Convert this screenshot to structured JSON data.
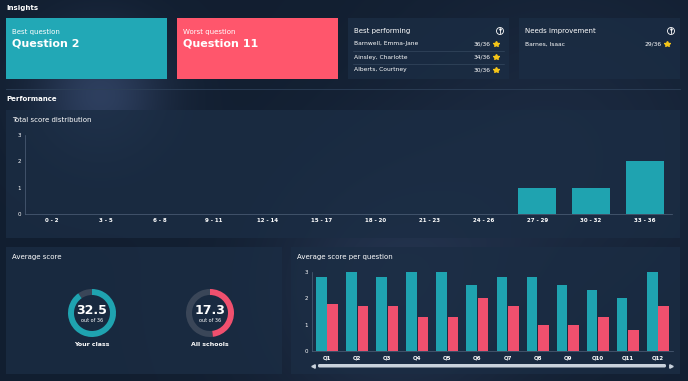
{
  "header": {
    "title": "Insights"
  },
  "insights": {
    "best_question": {
      "label": "Best question",
      "value": "Question 2",
      "color": "#22a8b6"
    },
    "worst_question": {
      "label": "Worst question",
      "value": "Question 11",
      "color": "#ff566c"
    },
    "best_performing": {
      "title": "Best performing",
      "rows": [
        {
          "name": "Barnwell, Emma-Jane",
          "score": "36/36"
        },
        {
          "name": "Ainsley, Charlotte",
          "score": "34/36"
        },
        {
          "name": "Alberts, Courtney",
          "score": "30/36"
        }
      ]
    },
    "needs_improvement": {
      "title": "Needs improvement",
      "rows": [
        {
          "name": "Barnes, Isaac",
          "score": "29/36"
        }
      ]
    }
  },
  "section": {
    "title": "Performance"
  },
  "chart_data": [
    {
      "type": "bar",
      "title": "Total score distribution",
      "categories": [
        "0 - 2",
        "3 - 5",
        "6 - 8",
        "9 - 11",
        "12 - 14",
        "15 - 17",
        "18 - 20",
        "21 - 23",
        "24 - 26",
        "27 - 29",
        "30 - 32",
        "33 - 36"
      ],
      "values": [
        0,
        0,
        0,
        0,
        0,
        0,
        0,
        0,
        0,
        1,
        1,
        2
      ],
      "color": "#1fa3b0",
      "ylim": [
        0,
        3
      ],
      "yticks": [
        0,
        1,
        2,
        3
      ]
    },
    {
      "type": "gauge",
      "title": "Average score",
      "items": [
        {
          "value": 32.5,
          "max": 36,
          "max_label": "out of 36",
          "label": "Your class",
          "color": "#1fa3b0"
        },
        {
          "value": 17.3,
          "max": 36,
          "max_label": "out of 36",
          "label": "All schools",
          "color": "#f0506e"
        }
      ]
    },
    {
      "type": "bar",
      "title": "Average score per question",
      "categories": [
        "Q1",
        "Q2",
        "Q3",
        "Q4",
        "Q5",
        "Q6",
        "Q7",
        "Q8",
        "Q9",
        "Q10",
        "Q11",
        "Q12"
      ],
      "series": [
        {
          "color": "#1fa3b0",
          "values": [
            2.8,
            3.0,
            2.8,
            3.0,
            3.0,
            2.5,
            2.8,
            2.8,
            2.5,
            2.3,
            2.0,
            3.0
          ]
        },
        {
          "color": "#f0506e",
          "values": [
            1.8,
            1.7,
            1.7,
            1.3,
            1.3,
            2.0,
            1.7,
            1.0,
            1.0,
            1.3,
            0.8,
            1.7
          ]
        }
      ],
      "ylim": [
        0,
        3
      ],
      "yticks": [
        0,
        1,
        2,
        3
      ]
    }
  ]
}
